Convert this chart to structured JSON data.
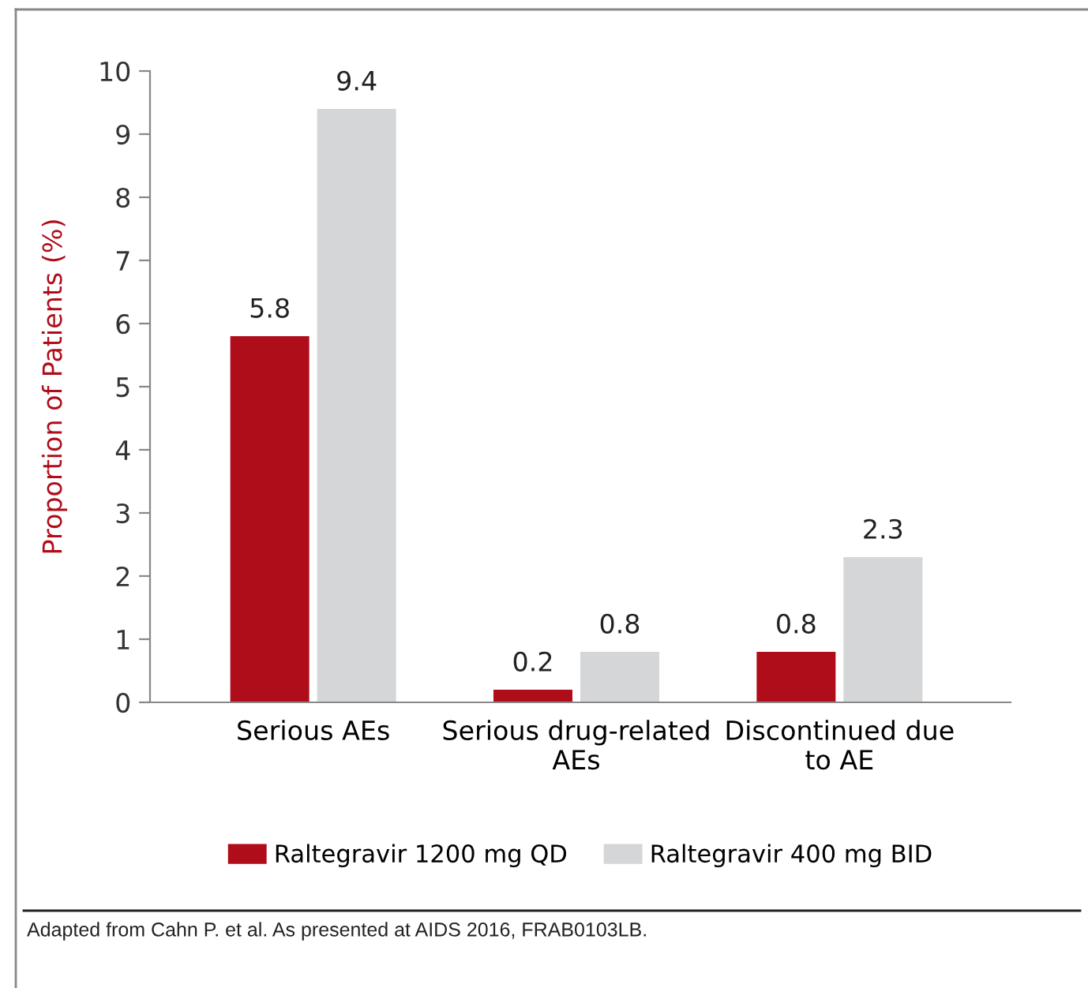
{
  "chart_data": {
    "type": "bar",
    "ylabel": "Proportion of Patients (%)",
    "categories": [
      "Serious AEs",
      "Serious drug-related\nAEs",
      "Discontinued due\nto AE"
    ],
    "series": [
      {
        "name": "Raltegravir 1200 mg QD",
        "color": "#b00d1b",
        "values": [
          5.8,
          0.2,
          0.8
        ]
      },
      {
        "name": "Raltegravir 400 mg BID",
        "color": "#d5d6d8",
        "values": [
          9.4,
          0.8,
          2.3
        ]
      }
    ],
    "ylim": [
      0,
      10
    ],
    "yticks": [
      0,
      1,
      2,
      3,
      4,
      5,
      6,
      7,
      8,
      9,
      10
    ],
    "data_labels": true,
    "grid": false,
    "legend": "bottom",
    "annotations": [
      "Adapted from Cahn P. et al. As presented at AIDS 2016, FRAB0103LB."
    ]
  }
}
